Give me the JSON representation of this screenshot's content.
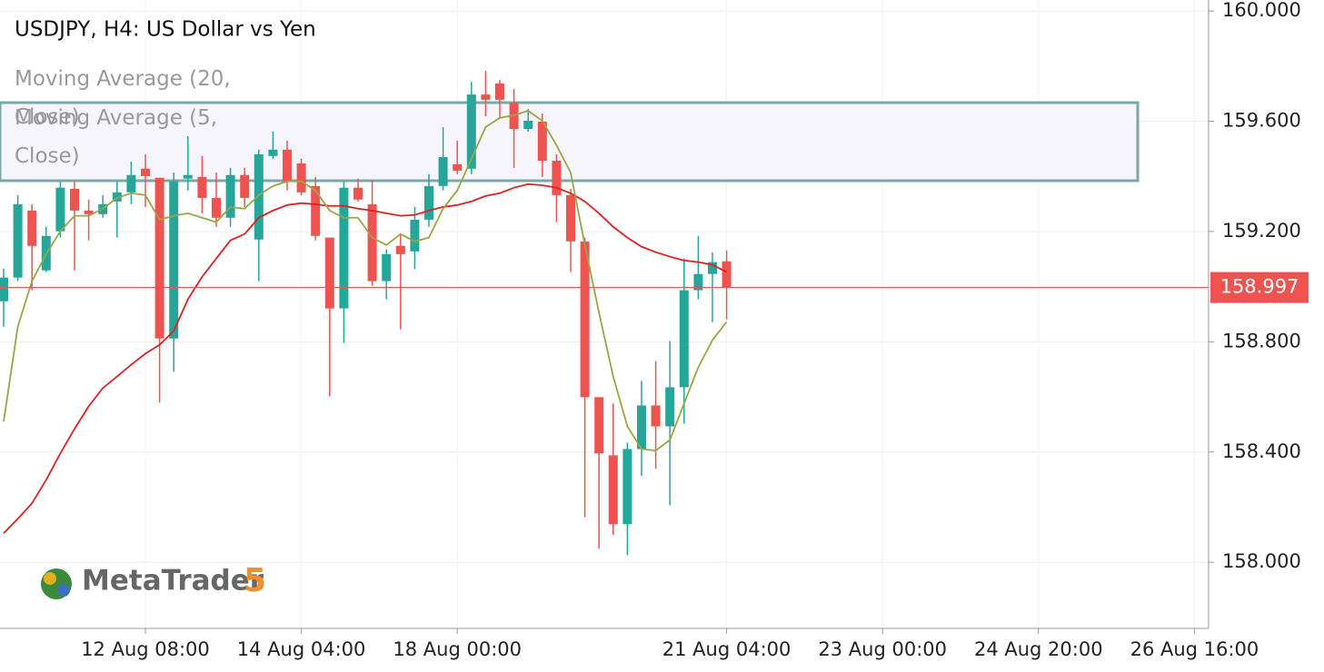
{
  "chart_data": {
    "type": "candlestick",
    "title": "USDJPY, H4: US Dollar vs Yen",
    "watermark": "MetaTrader",
    "watermark_version": "5",
    "categories": [
      null,
      null,
      null,
      null,
      null,
      null,
      null,
      null,
      null,
      null,
      "12 Aug 08:00",
      null,
      null,
      null,
      null,
      null,
      null,
      null,
      null,
      null,
      null,
      "14 Aug 04:00",
      null,
      null,
      null,
      null,
      null,
      null,
      null,
      null,
      null,
      null,
      "18 Aug 00:00",
      null,
      null,
      null,
      null,
      null,
      null,
      null,
      null,
      null,
      null,
      null,
      null,
      null,
      null,
      null,
      null,
      null,
      null,
      "21 Aug 04:00",
      null,
      null,
      null,
      null,
      null,
      null,
      null,
      null,
      null,
      null,
      "23 Aug 00:00",
      null,
      null,
      null,
      null,
      null,
      null,
      null,
      null,
      null,
      null,
      "24 Aug 20:00",
      null,
      null,
      null,
      null,
      null,
      null,
      null,
      null,
      null,
      null,
      "26 Aug 16:00",
      null
    ],
    "open": [
      158.947,
      159.033,
      159.276,
      159.059,
      159.201,
      159.355,
      159.276,
      159.263,
      159.309,
      159.342,
      159.428,
      159.395,
      158.812,
      159.392,
      159.398,
      159.322,
      159.25,
      159.405,
      159.171,
      159.474,
      159.497,
      159.447,
      159.365,
      159.178,
      158.921,
      159.359,
      159.299,
      159.02,
      159.148,
      159.128,
      159.243,
      159.365,
      159.444,
      159.428,
      159.697,
      159.737,
      159.668,
      159.572,
      159.599,
      159.457,
      159.332,
      159.164,
      158.599,
      158.388,
      158.138,
      158.411,
      158.569,
      158.493,
      158.635,
      158.987,
      159.046,
      159.092,
      null,
      null,
      null,
      null,
      null,
      null,
      null,
      null,
      null,
      null,
      null,
      null,
      null,
      null,
      null,
      null,
      null,
      null,
      null,
      null,
      null,
      null,
      null,
      null,
      null,
      null,
      null,
      null,
      null,
      null,
      null,
      null,
      null,
      null
    ],
    "high": [
      159.066,
      159.332,
      159.299,
      159.217,
      159.382,
      159.382,
      159.316,
      159.332,
      159.382,
      159.454,
      159.48,
      159.395,
      159.414,
      159.546,
      159.474,
      159.414,
      159.431,
      159.431,
      159.497,
      159.563,
      159.53,
      159.464,
      159.398,
      159.178,
      159.382,
      159.392,
      159.388,
      159.135,
      159.191,
      159.289,
      159.408,
      159.579,
      159.53,
      159.743,
      159.783,
      159.75,
      159.717,
      159.645,
      159.628,
      159.48,
      159.355,
      159.178,
      158.599,
      158.576,
      158.434,
      158.658,
      158.73,
      158.803,
      159.102,
      159.184,
      159.125,
      159.132,
      null,
      null,
      null,
      null,
      null,
      null,
      null,
      null,
      null,
      null,
      null,
      null,
      null,
      null,
      null,
      null,
      null,
      null,
      null,
      null,
      null,
      null,
      null,
      null,
      null,
      null,
      null,
      null,
      null,
      null,
      null,
      null,
      null,
      null
    ],
    "low": [
      158.855,
      159.02,
      158.987,
      159.053,
      159.178,
      159.059,
      159.168,
      159.25,
      159.178,
      159.299,
      159.289,
      158.579,
      158.691,
      159.349,
      159.266,
      159.217,
      159.217,
      159.289,
      159.02,
      159.464,
      159.349,
      159.332,
      159.168,
      158.602,
      158.796,
      159.309,
      159.003,
      158.954,
      158.845,
      159.063,
      159.217,
      159.349,
      159.408,
      159.408,
      159.618,
      159.612,
      159.431,
      159.563,
      159.398,
      159.234,
      159.053,
      158.164,
      158.049,
      158.099,
      158.026,
      158.313,
      158.339,
      158.207,
      158.503,
      158.954,
      158.871,
      158.882,
      null,
      null,
      null,
      null,
      null,
      null,
      null,
      null,
      null,
      null,
      null,
      null,
      null,
      null,
      null,
      null,
      null,
      null,
      null,
      null,
      null,
      null,
      null,
      null,
      null,
      null,
      null,
      null,
      null,
      null,
      null,
      null,
      null,
      null
    ],
    "close": [
      159.033,
      159.299,
      159.148,
      159.184,
      159.359,
      159.276,
      159.263,
      159.299,
      159.342,
      159.405,
      159.401,
      158.812,
      159.382,
      159.405,
      159.322,
      159.25,
      159.405,
      159.322,
      159.48,
      159.497,
      159.382,
      159.342,
      159.184,
      158.921,
      159.359,
      159.316,
      159.02,
      159.118,
      159.118,
      159.243,
      159.365,
      159.47,
      159.421,
      159.697,
      159.678,
      159.678,
      159.572,
      159.602,
      159.457,
      159.332,
      159.164,
      158.599,
      158.395,
      158.138,
      158.411,
      158.569,
      158.493,
      158.635,
      158.987,
      159.046,
      159.089,
      158.997,
      null,
      null,
      null,
      null,
      null,
      null,
      null,
      null,
      null,
      null,
      null,
      null,
      null,
      null,
      null,
      null,
      null,
      null,
      null,
      null,
      null,
      null,
      null,
      null,
      null,
      null,
      null,
      null,
      null,
      null,
      null,
      null,
      null,
      null
    ],
    "up_color": "#26a69a",
    "down_color": "#ef5350",
    "series": [
      {
        "name": "Moving Average (20, Close)",
        "color": "#e02020",
        "values": [
          158.105,
          158.158,
          158.214,
          158.299,
          158.395,
          158.484,
          158.566,
          158.632,
          158.674,
          158.717,
          158.757,
          158.789,
          158.839,
          158.954,
          159.036,
          159.102,
          159.168,
          159.191,
          159.25,
          159.276,
          159.296,
          159.303,
          159.299,
          159.293,
          159.293,
          159.283,
          159.276,
          159.266,
          159.257,
          159.26,
          159.276,
          159.289,
          159.296,
          159.309,
          159.329,
          159.339,
          159.359,
          159.372,
          159.368,
          159.359,
          159.339,
          159.309,
          159.266,
          159.217,
          159.178,
          159.145,
          159.125,
          159.109,
          159.095,
          159.089,
          159.079,
          159.053,
          null,
          null,
          null,
          null,
          null,
          null,
          null,
          null,
          null,
          null,
          null,
          null,
          null,
          null,
          null,
          null,
          null,
          null,
          null,
          null,
          null,
          null,
          null,
          null,
          null,
          null,
          null,
          null,
          null,
          null,
          null,
          null,
          null,
          null
        ]
      },
      {
        "name": "Moving Average (5, Close)",
        "color": "#9aa545",
        "values": [
          158.51,
          158.855,
          159.02,
          159.118,
          159.201,
          159.257,
          159.257,
          159.283,
          159.322,
          159.339,
          159.332,
          159.243,
          159.257,
          159.266,
          159.25,
          159.234,
          159.289,
          159.283,
          159.332,
          159.365,
          159.382,
          159.382,
          159.349,
          159.276,
          159.25,
          159.25,
          159.178,
          159.151,
          159.191,
          159.164,
          159.178,
          159.283,
          159.349,
          159.464,
          159.579,
          159.612,
          159.622,
          159.638,
          159.602,
          159.513,
          159.414,
          159.151,
          158.905,
          158.674,
          158.493,
          158.411,
          158.405,
          158.444,
          158.576,
          158.707,
          158.806,
          158.872,
          null,
          null,
          null,
          null,
          null,
          null,
          null,
          null,
          null,
          null,
          null,
          null,
          null,
          null,
          null,
          null,
          null,
          null,
          null,
          null,
          null,
          null,
          null,
          null,
          null,
          null,
          null,
          null,
          null,
          null,
          null,
          null,
          null,
          null
        ]
      }
    ],
    "last_price": 158.997,
    "ylim": [
      157.76,
      160.04
    ],
    "yticks": [
      {
        "value": 158,
        "label": "158.000"
      },
      {
        "value": 158.4,
        "label": "158.400"
      },
      {
        "value": 158.8,
        "label": "158.800"
      },
      {
        "value": 159.2,
        "label": "159.200"
      },
      {
        "value": 159.6,
        "label": "159.600"
      },
      {
        "value": 160,
        "label": "160.000"
      }
    ],
    "grid": true
  }
}
